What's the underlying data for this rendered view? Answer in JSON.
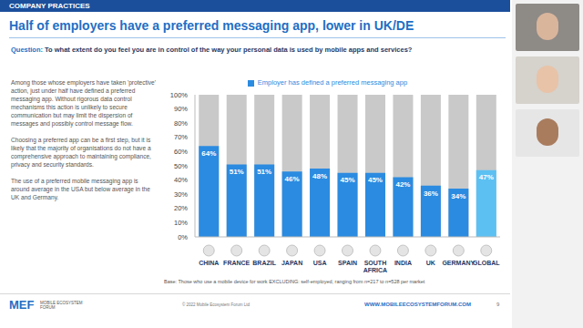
{
  "header": {
    "section": "COMPANY PRACTICES",
    "title": "Half of employers have a preferred messaging app, lower in UK/DE"
  },
  "question": {
    "label": "Question:",
    "text": "To what extent do you feel you are in control of the way your personal data is used by mobile apps and services?"
  },
  "commentary": [
    "Among those whose employers have taken 'protective' action, just under half have defined a preferred messaging app. Without rigorous data control mechanisms this action is unlikely to secure communication but may limit the dispersion of messages and possibly control message flow.",
    "Choosing a preferred app can be a first step, but it is likely that the majority of organisations do not have a comprehensive approach to maintaining compliance, privacy and security standards.",
    "The use of a preferred mobile messaging app is around average in the USA but below average in the UK and Germany."
  ],
  "chart_data": {
    "type": "bar",
    "categories": [
      "CHINA",
      "FRANCE",
      "BRAZIL",
      "JAPAN",
      "USA",
      "SPAIN",
      "SOUTH AFRICA",
      "INDIA",
      "UK",
      "GERMANY",
      "GLOBAL"
    ],
    "series": [
      {
        "name": "Employer has defined a preferred messaging app",
        "values": [
          64,
          51,
          51,
          46,
          48,
          45,
          45,
          42,
          36,
          34,
          47
        ],
        "value_labels": [
          "64%",
          "51%",
          "51%",
          "46%",
          "48%",
          "45%",
          "45%",
          "42%",
          "36%",
          "34%",
          "47%"
        ],
        "colors": [
          "#2b8be0",
          "#2b8be0",
          "#2b8be0",
          "#2b8be0",
          "#2b8be0",
          "#2b8be0",
          "#2b8be0",
          "#2b8be0",
          "#2b8be0",
          "#2b8be0",
          "#5cc0f2"
        ]
      }
    ],
    "ylim": [
      0,
      100
    ],
    "yticks": [
      {
        "value": 0,
        "label": "0%"
      },
      {
        "value": 10,
        "label": "10%"
      },
      {
        "value": 20,
        "label": "20%"
      },
      {
        "value": 30,
        "label": "30%"
      },
      {
        "value": 40,
        "label": "40%"
      },
      {
        "value": 50,
        "label": "50%"
      },
      {
        "value": 60,
        "label": "60%"
      },
      {
        "value": 70,
        "label": "70%"
      },
      {
        "value": 80,
        "label": "80%"
      },
      {
        "value": 90,
        "label": "90%"
      },
      {
        "value": 100,
        "label": "100%"
      }
    ],
    "grid": false,
    "data_labels": true,
    "legend": "top"
  },
  "base_note": "Base: Those who use a mobile device for work EXCLUDING: self-employed, ranging from n=217 to n=528 per market",
  "footer": {
    "logo": "MEF",
    "logo_text": "MOBILE ECOSYSTEM FORUM",
    "copyright": "© 2022 Mobile Ecosystem Forum Ltd",
    "website": "WWW.MOBILEECOSYSTEMFORUM.COM",
    "page": "9"
  }
}
